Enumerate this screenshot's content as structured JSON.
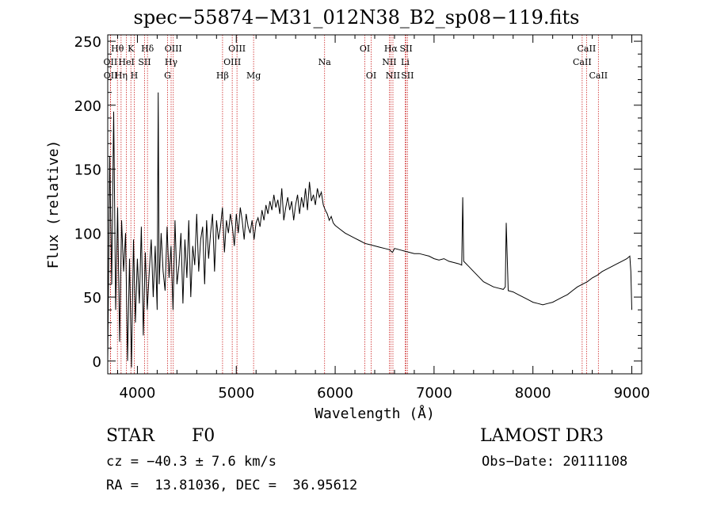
{
  "chart_data": {
    "type": "line",
    "title": "spec−55874−M31_012N38_B2_sp08−119.fits",
    "xlabel": "Wavelength (Å)",
    "ylabel": "Flux (relative)",
    "xlim": [
      3700,
      9100
    ],
    "ylim": [
      -10,
      255
    ],
    "xticks": [
      4000,
      5000,
      6000,
      7000,
      8000,
      9000
    ],
    "yticks": [
      0,
      50,
      100,
      150,
      200,
      250
    ],
    "series": [
      {
        "name": "flux",
        "x": [
          3700,
          3720,
          3740,
          3760,
          3780,
          3800,
          3820,
          3840,
          3860,
          3880,
          3900,
          3920,
          3940,
          3960,
          3980,
          4000,
          4020,
          4040,
          4060,
          4080,
          4100,
          4120,
          4140,
          4160,
          4180,
          4200,
          4210,
          4220,
          4240,
          4260,
          4280,
          4300,
          4320,
          4340,
          4360,
          4380,
          4400,
          4420,
          4440,
          4460,
          4480,
          4500,
          4520,
          4540,
          4560,
          4580,
          4600,
          4620,
          4640,
          4660,
          4680,
          4700,
          4720,
          4740,
          4760,
          4780,
          4800,
          4820,
          4840,
          4860,
          4880,
          4900,
          4920,
          4940,
          4960,
          4980,
          5000,
          5020,
          5040,
          5060,
          5080,
          5100,
          5120,
          5140,
          5160,
          5180,
          5200,
          5220,
          5240,
          5260,
          5280,
          5300,
          5320,
          5340,
          5360,
          5380,
          5400,
          5420,
          5440,
          5460,
          5480,
          5500,
          5520,
          5540,
          5560,
          5580,
          5600,
          5620,
          5640,
          5660,
          5680,
          5700,
          5720,
          5740,
          5760,
          5780,
          5800,
          5820,
          5840,
          5860,
          5880,
          5900,
          5920,
          5940,
          5960,
          5980,
          6000,
          6050,
          6100,
          6150,
          6200,
          6250,
          6300,
          6350,
          6400,
          6450,
          6500,
          6550,
          6563,
          6580,
          6600,
          6650,
          6700,
          6750,
          6800,
          6850,
          6900,
          6950,
          7000,
          7050,
          7100,
          7150,
          7200,
          7250,
          7280,
          7290,
          7300,
          7350,
          7400,
          7450,
          7500,
          7550,
          7600,
          7650,
          7700,
          7720,
          7730,
          7750,
          7800,
          7850,
          7900,
          7950,
          8000,
          8050,
          8100,
          8150,
          8200,
          8250,
          8300,
          8350,
          8400,
          8450,
          8500,
          8550,
          8600,
          8650,
          8700,
          8750,
          8800,
          8850,
          8900,
          8950,
          8980,
          8990,
          9000
        ],
        "y": [
          0,
          160,
          60,
          195,
          40,
          120,
          15,
          110,
          70,
          100,
          0,
          80,
          -5,
          95,
          30,
          80,
          45,
          105,
          20,
          85,
          40,
          70,
          95,
          50,
          90,
          40,
          210,
          60,
          100,
          70,
          55,
          105,
          65,
          90,
          40,
          110,
          60,
          75,
          100,
          45,
          95,
          65,
          110,
          50,
          90,
          75,
          115,
          70,
          95,
          105,
          60,
          110,
          80,
          100,
          115,
          70,
          110,
          95,
          105,
          120,
          85,
          110,
          100,
          115,
          105,
          90,
          115,
          100,
          120,
          110,
          95,
          115,
          105,
          100,
          110,
          95,
          108,
          112,
          105,
          118,
          110,
          122,
          115,
          125,
          118,
          130,
          120,
          126,
          115,
          135,
          110,
          120,
          128,
          118,
          125,
          110,
          122,
          130,
          115,
          128,
          120,
          135,
          118,
          140,
          125,
          130,
          122,
          135,
          128,
          132,
          122,
          118,
          115,
          110,
          113,
          108,
          106,
          103,
          100,
          98,
          96,
          94,
          92,
          91,
          90,
          89,
          88,
          87,
          86,
          85,
          88,
          87,
          86,
          85,
          84,
          84,
          83,
          82,
          80,
          79,
          80,
          78,
          77,
          76,
          75,
          128,
          78,
          74,
          70,
          66,
          62,
          60,
          58,
          57,
          56,
          58,
          108,
          55,
          54,
          52,
          50,
          48,
          46,
          45,
          44,
          45,
          46,
          48,
          50,
          52,
          55,
          58,
          60,
          62,
          65,
          67,
          70,
          72,
          74,
          76,
          78,
          80,
          82,
          70,
          40
        ]
      }
    ],
    "lines": [
      {
        "label": "Hθ",
        "x": 3798,
        "row": 0
      },
      {
        "label": "OII",
        "x": 3727,
        "row": 1
      },
      {
        "label": "OII",
        "x": 3729,
        "row": 2
      },
      {
        "label": "Hη",
        "x": 3835,
        "row": 2
      },
      {
        "label": "HeI",
        "x": 3889,
        "row": 1
      },
      {
        "label": "K",
        "x": 3934,
        "row": 0
      },
      {
        "label": "H",
        "x": 3968,
        "row": 2
      },
      {
        "label": "SII",
        "x": 4072,
        "row": 1
      },
      {
        "label": "Hδ",
        "x": 4102,
        "row": 0
      },
      {
        "label": "OIII",
        "x": 4363,
        "row": 0
      },
      {
        "label": "Hγ",
        "x": 4341,
        "row": 1
      },
      {
        "label": "G",
        "x": 4305,
        "row": 2
      },
      {
        "label": "Hβ",
        "x": 4861,
        "row": 2
      },
      {
        "label": "OIII",
        "x": 4959,
        "row": 1
      },
      {
        "label": "OIII",
        "x": 5007,
        "row": 0
      },
      {
        "label": "Mg",
        "x": 5175,
        "row": 2
      },
      {
        "label": "Na",
        "x": 5893,
        "row": 1
      },
      {
        "label": "OI",
        "x": 6300,
        "row": 0
      },
      {
        "label": "OI",
        "x": 6364,
        "row": 2
      },
      {
        "label": "Hα",
        "x": 6563,
        "row": 0
      },
      {
        "label": "NII",
        "x": 6548,
        "row": 1
      },
      {
        "label": "NII",
        "x": 6584,
        "row": 2
      },
      {
        "label": "SII",
        "x": 6717,
        "row": 0
      },
      {
        "label": "Li",
        "x": 6708,
        "row": 1
      },
      {
        "label": "SII",
        "x": 6731,
        "row": 2
      },
      {
        "label": "CaII",
        "x": 8542,
        "row": 0
      },
      {
        "label": "CaII",
        "x": 8498,
        "row": 1
      },
      {
        "label": "CaII",
        "x": 8662,
        "row": 2
      }
    ]
  },
  "info": {
    "class_label": "STAR",
    "subclass": "F0",
    "survey": "LAMOST DR3",
    "cz": "cz = −40.3 ± 7.6 km/s",
    "obs_date": "Obs−Date: 20111108",
    "coords": "RA =  13.81036, DEC =  36.95612"
  },
  "colors": {
    "line_marker": "#cc2222",
    "spectrum": "#000000"
  }
}
